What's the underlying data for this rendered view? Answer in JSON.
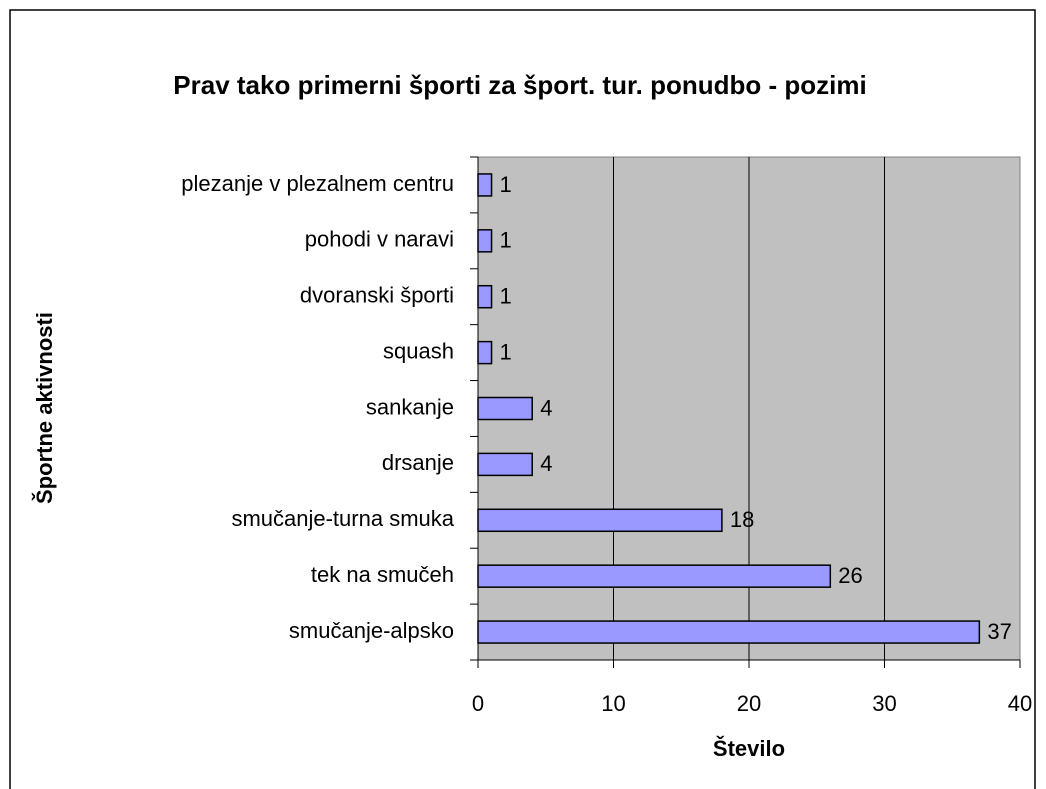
{
  "chart_data": {
    "type": "bar",
    "orientation": "horizontal",
    "title": "Prav tako primerni športi za šport. tur. ponudbo - pozimi",
    "x_label": "Število",
    "y_label": "Športne aktivnosti",
    "categories": [
      "plezanje v plezalnem centru",
      "pohodi v naravi",
      "dvoranski športi",
      "squash",
      "sankanje",
      "drsanje",
      "smučanje-turna smuka",
      "tek na smučeh",
      "smučanje-alpsko"
    ],
    "values": [
      1,
      1,
      1,
      1,
      4,
      4,
      18,
      26,
      37
    ],
    "color": "#9999ff",
    "xlim": [
      0,
      40
    ],
    "xticks": [
      0,
      10,
      20,
      30,
      40
    ],
    "grid": true
  }
}
